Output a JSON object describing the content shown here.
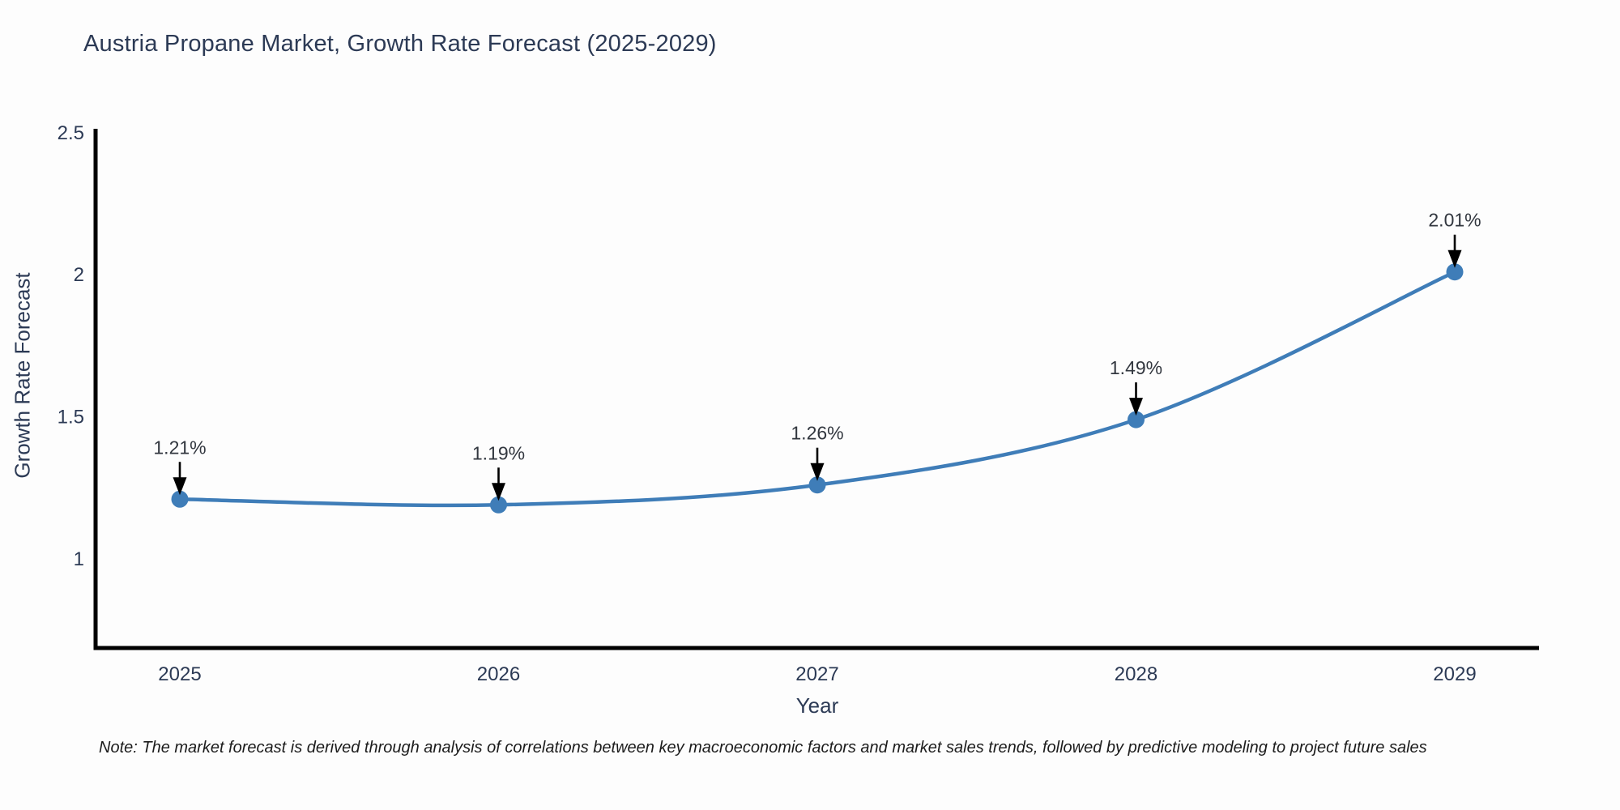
{
  "title": "Austria Propane Market, Growth Rate Forecast (2025-2029)",
  "note": "Note: The market forecast is derived through analysis of correlations between key macroeconomic factors and market sales trends, followed by predictive modeling to project future sales",
  "chart_data": {
    "type": "line",
    "title": "Austria Propane Market, Growth Rate Forecast (2025-2029)",
    "xlabel": "Year",
    "ylabel": "Growth Rate Forecast",
    "x": [
      2025,
      2026,
      2027,
      2028,
      2029
    ],
    "values": [
      1.21,
      1.19,
      1.26,
      1.49,
      2.01
    ],
    "point_labels": [
      "1.21%",
      "1.19%",
      "1.26%",
      "1.49%",
      "2.01%"
    ],
    "yticks": [
      1,
      1.5,
      2,
      2.5
    ],
    "ytick_labels": [
      "1",
      "1.5",
      "2",
      "2.5"
    ],
    "ylim": [
      0.686,
      2.514
    ],
    "grid": false,
    "legend": "none",
    "line_shape": "spline",
    "line_color": "#3f7db8",
    "marker_color": "#3f7db8",
    "axis_color": "#000000",
    "text_color": "#2c3a55",
    "annotation_arrow_color": "#000000"
  }
}
